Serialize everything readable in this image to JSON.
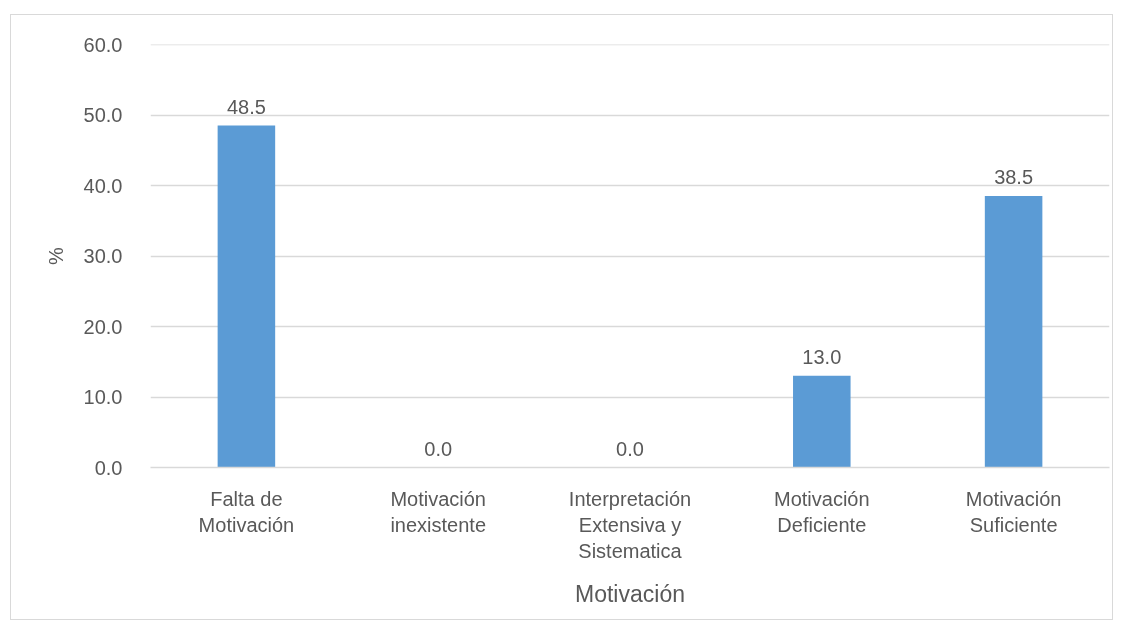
{
  "chart_data": {
    "type": "bar",
    "categories": [
      "Falta de Motivación",
      "Motivación inexistente",
      "Interpretación Extensiva y Sistematica",
      "Motivación Deficiente",
      "Motivación Suficiente"
    ],
    "values": [
      48.5,
      0,
      0,
      13,
      38.5
    ],
    "value_labels": [
      "48.5",
      "0.0",
      "0.0",
      "13.0",
      "38.5"
    ],
    "color": "#5b9bd5",
    "xlabel": "Motivación",
    "ylabel": "%",
    "ylim": [
      0,
      60
    ],
    "yticks": [
      {
        "value": 0,
        "label": "0.0"
      },
      {
        "value": 10,
        "label": "10.0"
      },
      {
        "value": 20,
        "label": "20.0"
      },
      {
        "value": 30,
        "label": "30.0"
      },
      {
        "value": 40,
        "label": "40.0"
      },
      {
        "value": 50,
        "label": "50.0"
      },
      {
        "value": 60,
        "label": "60.0"
      }
    ],
    "grid": "y"
  }
}
